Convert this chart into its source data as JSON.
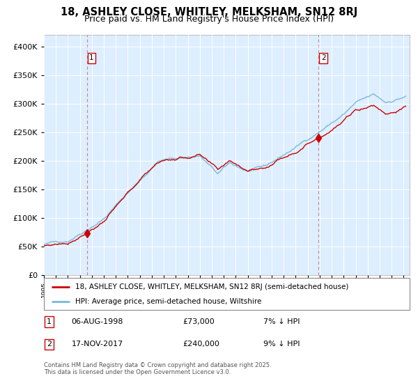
{
  "title1": "18, ASHLEY CLOSE, WHITLEY, MELKSHAM, SN12 8RJ",
  "title2": "Price paid vs. HM Land Registry's House Price Index (HPI)",
  "legend_line1": "18, ASHLEY CLOSE, WHITLEY, MELKSHAM, SN12 8RJ (semi-detached house)",
  "legend_line2": "HPI: Average price, semi-detached house, Wiltshire",
  "annotation1_date": "06-AUG-1998",
  "annotation1_price": "£73,000",
  "annotation1_hpi": "7% ↓ HPI",
  "annotation2_date": "17-NOV-2017",
  "annotation2_price": "£240,000",
  "annotation2_hpi": "9% ↓ HPI",
  "footnote": "Contains HM Land Registry data © Crown copyright and database right 2025.\nThis data is licensed under the Open Government Licence v3.0.",
  "sale1_year": 1998.583,
  "sale1_value": 73000,
  "sale2_year": 2017.875,
  "sale2_value": 240000,
  "hpi_color": "#7ab8d9",
  "price_color": "#cc0000",
  "bg_color": "#ddeeff",
  "grid_color": "#ffffff",
  "vline_color": "#cc3333",
  "box_color": "#cc0000",
  "ylim_max": 420000,
  "xlim_min": 1995,
  "xlim_max": 2025.5
}
